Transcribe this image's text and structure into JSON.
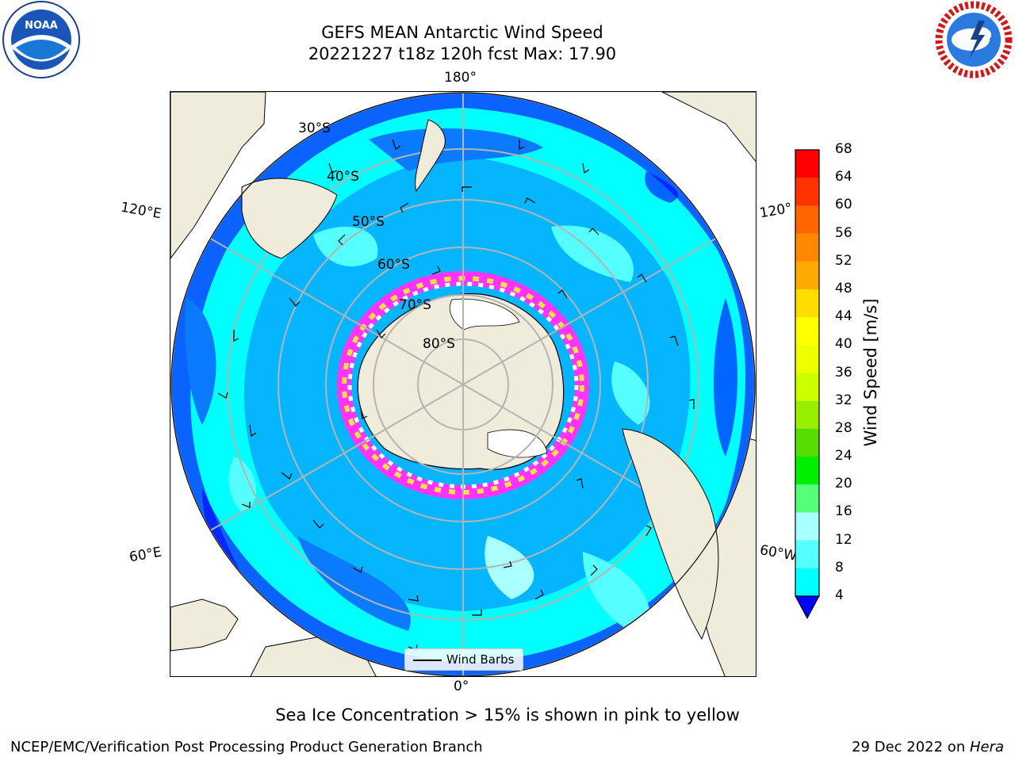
{
  "header": {
    "title_line1": "GEFS MEAN Antarctic Wind Speed",
    "title_line2": "20221227 t18z 120h fcst   Max: 17.90"
  },
  "map": {
    "lon_labels": {
      "top": "180°",
      "bottom": "0°",
      "left_upper": "120°E",
      "left_lower": "60°E",
      "right_upper": "120°",
      "right_lower": "60°W"
    },
    "lat_labels": [
      "30°S",
      "40°S",
      "50°S",
      "60°S",
      "70°S",
      "80°S"
    ],
    "legend_label": "Wind Barbs",
    "colors": {
      "land": "#efecdb",
      "ocean_base": "#0a62ff",
      "ice_high": "#ff33ff",
      "ice_low": "#ffdd44"
    }
  },
  "colorbar": {
    "title": "Wind Speed [m/s]",
    "ticks": [
      "68",
      "64",
      "60",
      "56",
      "52",
      "48",
      "44",
      "40",
      "36",
      "32",
      "28",
      "24",
      "20",
      "16",
      "12",
      "8",
      "4"
    ],
    "colors": [
      "#ff0000",
      "#ff3300",
      "#ff6600",
      "#ff8800",
      "#ffaa00",
      "#ffdd00",
      "#ffff00",
      "#eeff00",
      "#ccff00",
      "#99ee00",
      "#55dd00",
      "#00ee00",
      "#55ff77",
      "#aaffff",
      "#55ffff",
      "#00ffff",
      "#0a7aff"
    ],
    "under_color": "#0000ff"
  },
  "footer": {
    "caption": "Sea Ice Concentration > 15% is shown in pink to yellow",
    "left": "NCEP/EMC/Verification Post Processing Product Generation Branch",
    "date": "29 Dec 2022 on ",
    "host": "Hera"
  },
  "logos": {
    "left": "noaa-logo",
    "right": "nws-logo"
  }
}
